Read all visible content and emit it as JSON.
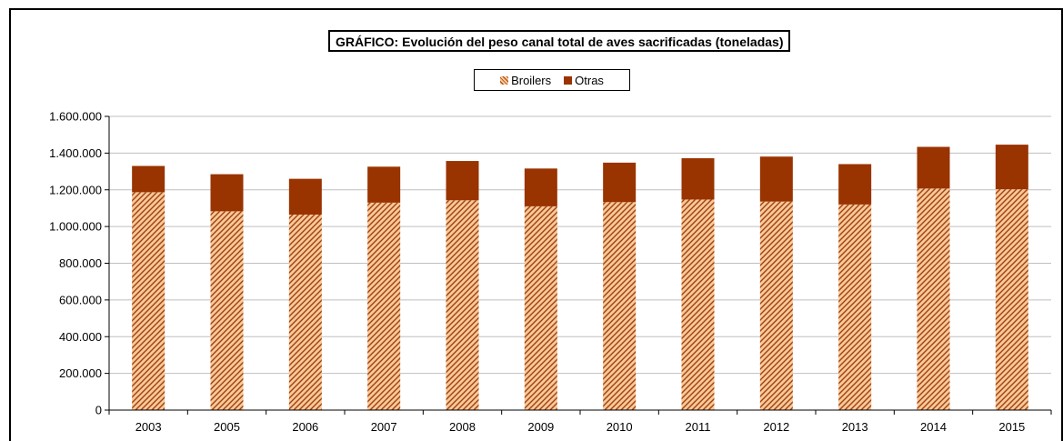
{
  "chart_data": {
    "type": "bar",
    "stacked": true,
    "title": "GRÁFICO: Evolución del peso canal total de aves sacrificadas (toneladas)",
    "categories": [
      "2003",
      "2005",
      "2006",
      "2007",
      "2008",
      "2009",
      "2010",
      "2011",
      "2012",
      "2013",
      "2014",
      "2015"
    ],
    "series": [
      {
        "name": "Broilers",
        "color": "#f8c898",
        "pattern_color": "#a04010",
        "values": [
          1187000,
          1083000,
          1065000,
          1130000,
          1143000,
          1110000,
          1133000,
          1147000,
          1136000,
          1120000,
          1207000,
          1203000
        ]
      },
      {
        "name": "Otras",
        "color": "#993300",
        "values": [
          143000,
          202000,
          195000,
          196000,
          214000,
          206000,
          215000,
          225000,
          245000,
          220000,
          227000,
          243000
        ]
      }
    ],
    "ylim": [
      0,
      1600000
    ],
    "yticks": [
      0,
      200000,
      400000,
      600000,
      800000,
      1000000,
      1200000,
      1400000,
      1600000
    ],
    "ytick_labels": [
      "0",
      "200.000",
      "400.000",
      "600.000",
      "800.000",
      "1.000.000",
      "1.200.000",
      "1.400.000",
      "1.600.000"
    ],
    "xlabel": "",
    "ylabel": "",
    "grid": true,
    "legend": "top-center"
  }
}
